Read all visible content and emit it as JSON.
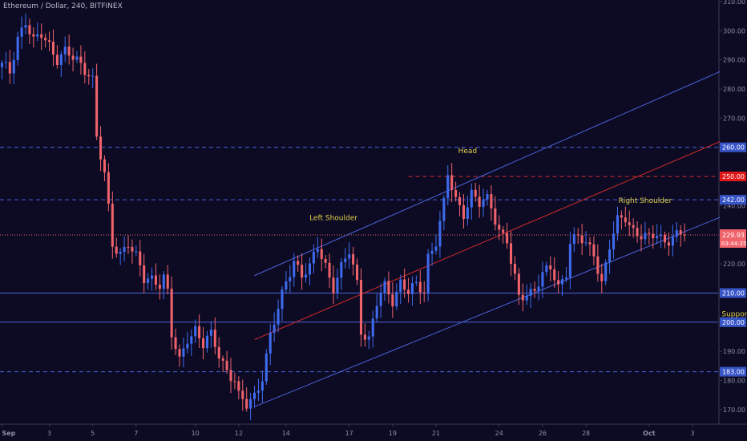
{
  "title": "Ethereum / Dollar, 240, BITFINEX",
  "colors": {
    "background": "#0d0b24",
    "up": "#3f6bef",
    "down": "#f0636b",
    "level_line": "#4a62d8",
    "red_line": "#d32a2a",
    "label": "#e3d24a",
    "axis_text": "#8d8da4",
    "axis_line": "#3a3a55",
    "price_badge": "#f0636b",
    "red_badge": "#e01818",
    "blue_badge": "#3855c8"
  },
  "chart_data": {
    "type": "candlestick",
    "ylim": [
      165,
      310
    ],
    "yticks": [
      170,
      180,
      190,
      200,
      210,
      220,
      230,
      240,
      250,
      260,
      270,
      280,
      290,
      300,
      310
    ],
    "ytick_labels": [
      "170.00",
      "180.00",
      "190.00",
      "200.00",
      "210.00",
      "220.00",
      "230.00",
      "240.00",
      "250.00",
      "260.00",
      "270.00",
      "280.00",
      "290.00",
      "300.00",
      "310.00"
    ],
    "x_dates": [
      "Sep",
      "3",
      "5",
      "7",
      "10",
      "12",
      "14",
      "17",
      "19",
      "21",
      "24",
      "26",
      "28",
      "Oct",
      "3"
    ],
    "x_tick_index": [
      0,
      12,
      23,
      34,
      49,
      60,
      72,
      88,
      99,
      110,
      126,
      137,
      148,
      164,
      175
    ],
    "total_bars": 182,
    "candle_bars": 174,
    "anchors": [
      [
        0,
        288
      ],
      [
        2,
        285
      ],
      [
        4,
        298
      ],
      [
        6,
        304
      ],
      [
        8,
        296
      ],
      [
        10,
        298
      ],
      [
        12,
        295
      ],
      [
        14,
        291
      ],
      [
        16,
        293
      ],
      [
        18,
        290
      ],
      [
        20,
        288
      ],
      [
        22,
        286
      ],
      [
        23,
        284
      ],
      [
        24,
        264
      ],
      [
        26,
        250
      ],
      [
        27,
        238
      ],
      [
        28,
        226
      ],
      [
        30,
        224
      ],
      [
        32,
        228
      ],
      [
        34,
        222
      ],
      [
        36,
        214
      ],
      [
        38,
        215
      ],
      [
        40,
        214
      ],
      [
        41,
        216
      ],
      [
        42,
        210
      ],
      [
        43,
        195
      ],
      [
        45,
        186
      ],
      [
        47,
        195
      ],
      [
        49,
        198
      ],
      [
        51,
        192
      ],
      [
        53,
        195
      ],
      [
        55,
        189
      ],
      [
        57,
        184
      ],
      [
        59,
        180
      ],
      [
        60,
        174
      ],
      [
        62,
        171
      ],
      [
        64,
        175
      ],
      [
        66,
        182
      ],
      [
        68,
        195
      ],
      [
        70,
        204
      ],
      [
        72,
        214
      ],
      [
        74,
        222
      ],
      [
        76,
        216
      ],
      [
        78,
        218
      ],
      [
        80,
        226
      ],
      [
        82,
        220
      ],
      [
        84,
        212
      ],
      [
        86,
        218
      ],
      [
        88,
        224
      ],
      [
        90,
        214
      ],
      [
        91,
        198
      ],
      [
        93,
        194
      ],
      [
        95,
        206
      ],
      [
        97,
        212
      ],
      [
        99,
        208
      ],
      [
        101,
        214
      ],
      [
        103,
        210
      ],
      [
        105,
        212
      ],
      [
        107,
        211
      ],
      [
        108,
        223
      ],
      [
        110,
        228
      ],
      [
        112,
        240
      ],
      [
        113,
        250
      ],
      [
        115,
        242
      ],
      [
        117,
        238
      ],
      [
        119,
        244
      ],
      [
        121,
        240
      ],
      [
        123,
        242
      ],
      [
        124,
        240
      ],
      [
        126,
        232
      ],
      [
        128,
        228
      ],
      [
        129,
        220
      ],
      [
        131,
        208
      ],
      [
        133,
        210
      ],
      [
        135,
        212
      ],
      [
        137,
        216
      ],
      [
        139,
        218
      ],
      [
        141,
        212
      ],
      [
        143,
        218
      ],
      [
        144,
        228
      ],
      [
        146,
        229
      ],
      [
        148,
        226
      ],
      [
        150,
        224
      ],
      [
        152,
        214
      ],
      [
        154,
        226
      ],
      [
        156,
        234
      ],
      [
        158,
        236
      ],
      [
        160,
        232
      ],
      [
        162,
        230
      ],
      [
        164,
        228
      ],
      [
        166,
        230
      ],
      [
        168,
        228
      ],
      [
        170,
        230
      ],
      [
        172,
        229.5
      ],
      [
        173,
        229.93
      ]
    ],
    "horizontal_levels": [
      {
        "price": 260,
        "label": "260.00",
        "style": "dashed",
        "color": "blue"
      },
      {
        "price": 242,
        "label": "242.00",
        "style": "dashed",
        "color": "blue"
      },
      {
        "price": 210,
        "label": "210.00",
        "style": "solid",
        "color": "blue"
      },
      {
        "price": 200,
        "label": "200.00",
        "style": "solid",
        "color": "blue"
      },
      {
        "price": 183,
        "label": "183.00",
        "style": "dashed",
        "color": "blue"
      },
      {
        "price": 250,
        "label": "250.00",
        "style": "dashed",
        "color": "red",
        "from_index": 103
      }
    ],
    "last_price": {
      "price": 229.93,
      "label": "229.93",
      "countdown": "03:44:35"
    },
    "trend_lines": [
      {
        "name": "channel-upper",
        "color": "blue",
        "from": [
          64,
          216
        ],
        "to": [
          182,
          286
        ]
      },
      {
        "name": "channel-lower",
        "color": "blue",
        "from": [
          64,
          171
        ],
        "to": [
          182,
          236
        ]
      },
      {
        "name": "neckline",
        "color": "red",
        "from": [
          64,
          194
        ],
        "to": [
          182,
          262
        ]
      }
    ],
    "annotations": [
      {
        "text": "Head",
        "index": 118,
        "price": 258
      },
      {
        "text": "Left Shoulder",
        "index": 84,
        "price": 235
      },
      {
        "text": "Right Shoulder",
        "index": 163,
        "price": 241
      },
      {
        "text": "Support",
        "index": 186,
        "price": 202
      }
    ]
  }
}
